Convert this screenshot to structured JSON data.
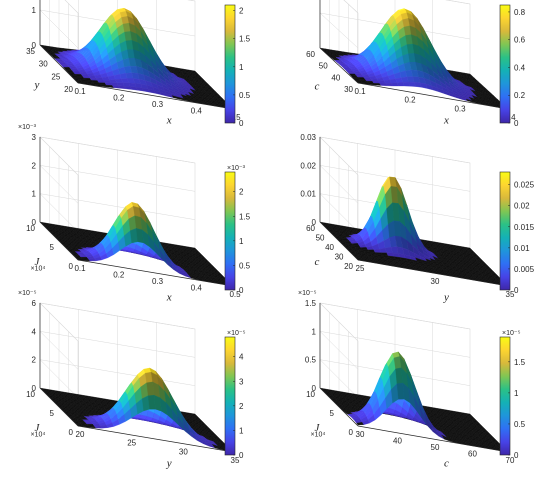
{
  "colormap": [
    "#3e26a8",
    "#4743e7",
    "#2f6ff4",
    "#1f95db",
    "#14b1b6",
    "#2bc186",
    "#80c653",
    "#d8b93b",
    "#fdd530",
    "#f9fb14"
  ],
  "chart_data": [
    {
      "type": "surface3d",
      "xlabel": "x",
      "ylabel": "y",
      "xlim": [
        0.1,
        0.5
      ],
      "ylim": [
        20,
        35
      ],
      "zlim": [
        0,
        2
      ],
      "xticks": [
        "0.1",
        "0.2",
        "0.3",
        "0.4",
        "0.5"
      ],
      "yticks": [
        "20",
        "25",
        "30",
        "35"
      ],
      "zticks": [
        "0",
        "1",
        "2"
      ],
      "zmult": "",
      "ymult": "",
      "colorbar": {
        "min": 0,
        "max": 2.1,
        "ticks": [
          "0",
          "0.5",
          "1",
          "1.5",
          "2"
        ],
        "mult": ""
      },
      "peak": {
        "x": 0.27,
        "y": 27.5,
        "z": 1.9,
        "sx": 0.06,
        "sy": 3.0
      }
    },
    {
      "type": "surface3d",
      "xlabel": "x",
      "ylabel": "c",
      "xlim": [
        0.1,
        0.45
      ],
      "ylim": [
        30,
        60
      ],
      "zlim": [
        0,
        0.8
      ],
      "xticks": [
        "0.1",
        "0.2",
        "0.3",
        "0.4"
      ],
      "yticks": [
        "30",
        "40",
        "50",
        "60"
      ],
      "zticks": [],
      "zmult": "",
      "ymult": "",
      "colorbar": {
        "min": 0,
        "max": 0.85,
        "ticks": [
          "0",
          "0.2",
          "0.4",
          "0.6",
          "0.8"
        ],
        "mult": ""
      },
      "peak": {
        "x": 0.25,
        "y": 43,
        "z": 0.8,
        "sx": 0.055,
        "sy": 6
      }
    },
    {
      "type": "surface3d",
      "xlabel": "x",
      "ylabel": "J",
      "xlim": [
        0.1,
        0.5
      ],
      "ylim": [
        0,
        10
      ],
      "zlim": [
        0,
        3
      ],
      "xticks": [
        "0.1",
        "0.2",
        "0.3",
        "0.4",
        "0.5"
      ],
      "yticks": [
        "0",
        "5",
        "10"
      ],
      "zticks": [
        "0",
        "1",
        "2",
        "3"
      ],
      "zmult": "×10⁻³",
      "ymult": "×10⁴",
      "colorbar": {
        "min": 0,
        "max": 2.4,
        "ticks": [
          "0",
          "0.5",
          "1",
          "1.5",
          "2"
        ],
        "mult": "×10⁻³"
      },
      "peak": {
        "x": 0.26,
        "y": 1.5,
        "z": 2.2,
        "sx": 0.05,
        "sy": 1.2
      }
    },
    {
      "type": "surface3d",
      "xlabel": "y",
      "ylabel": "c",
      "xlim": [
        20,
        35
      ],
      "ylim": [
        20,
        60
      ],
      "zlim": [
        0,
        0.03
      ],
      "xticks": [
        "25",
        "30",
        "35"
      ],
      "yticks": [
        "20",
        "30",
        "40",
        "50",
        "60"
      ],
      "zticks": [
        "0",
        "0.01",
        "0.02",
        "0.03"
      ],
      "zmult": "",
      "ymult": "",
      "colorbar": {
        "min": 0,
        "max": 0.028,
        "ticks": [
          "0",
          "0.005",
          "0.01",
          "0.015",
          "0.02",
          "0.025"
        ],
        "mult": ""
      },
      "peak": {
        "x": 25.5,
        "y": 42,
        "z": 0.026,
        "sx": 1.5,
        "sy": 4
      }
    },
    {
      "type": "surface3d",
      "xlabel": "y",
      "ylabel": "J",
      "xlim": [
        20,
        35
      ],
      "ylim": [
        0,
        10
      ],
      "zlim": [
        0,
        6
      ],
      "xticks": [
        "20",
        "25",
        "30",
        "35"
      ],
      "yticks": [
        "0",
        "5",
        "10"
      ],
      "zticks": [
        "0",
        "2",
        "4",
        "6"
      ],
      "zmult": "×10⁻⁵",
      "ymult": "×10⁴",
      "colorbar": {
        "min": 0,
        "max": 4.8,
        "ticks": [
          "0",
          "1",
          "2",
          "3",
          "4"
        ],
        "mult": "×10⁻⁵"
      },
      "peak": {
        "x": 27.5,
        "y": 1.5,
        "z": 4.6,
        "sx": 2.2,
        "sy": 1.2
      }
    },
    {
      "type": "surface3d",
      "xlabel": "c",
      "ylabel": "J",
      "xlim": [
        30,
        70
      ],
      "ylim": [
        0,
        10
      ],
      "zlim": [
        0,
        1.5
      ],
      "xticks": [
        "30",
        "40",
        "50",
        "60",
        "70"
      ],
      "yticks": [
        "0",
        "5",
        "10"
      ],
      "zticks": [
        "0",
        "0.5",
        "1",
        "1.5"
      ],
      "zmult": "×10⁻⁵",
      "ymult": "×10⁴",
      "colorbar": {
        "min": 0,
        "max": 1.9,
        "ticks": [
          "0",
          "0.5",
          "1",
          "1.5"
        ],
        "mult": "×10⁻⁵"
      },
      "peak": {
        "x": 42,
        "y": 1.5,
        "z": 1.35,
        "sx": 4.5,
        "sy": 1.2
      }
    }
  ]
}
